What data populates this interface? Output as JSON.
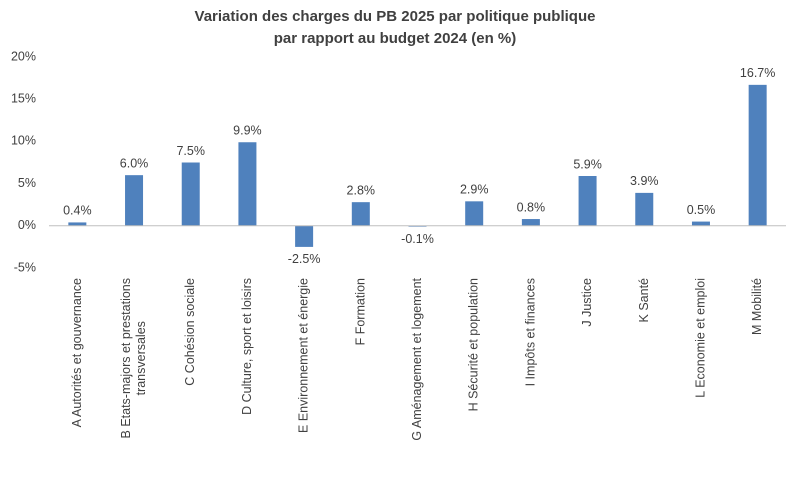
{
  "chart_data": {
    "type": "bar",
    "title": "Variation des charges du PB 2025 par politique publique\npar rapport au budget 2024 (en %)",
    "categories": [
      "A Autorités et gouvernance",
      "B Etats-majors et prestations\ntransversales",
      "C Cohésion sociale",
      "D Culture, sport et loisirs",
      "E Environnement et énergie",
      "F Formation",
      "G Aménagement et logement",
      "H Sécurité et population",
      "I Impôts et finances",
      "J Justice",
      "K Santé",
      "L Economie et emploi",
      "M Mobilité"
    ],
    "values": [
      0.4,
      6.0,
      7.5,
      9.9,
      -2.5,
      2.8,
      -0.1,
      2.9,
      0.8,
      5.9,
      3.9,
      0.5,
      16.7
    ],
    "value_labels": [
      "0.4%",
      "6.0%",
      "7.5%",
      "9.9%",
      "-2.5%",
      "2.8%",
      "-0.1%",
      "2.9%",
      "0.8%",
      "5.9%",
      "3.9%",
      "0.5%",
      "16.7%"
    ],
    "color": "#4f81bd",
    "ylim": [
      -5,
      20
    ],
    "yticks": [
      {
        "value": -5,
        "label": "-5%"
      },
      {
        "value": 0,
        "label": "0%"
      },
      {
        "value": 5,
        "label": "5%"
      },
      {
        "value": 10,
        "label": "10%"
      },
      {
        "value": 15,
        "label": "15%"
      },
      {
        "value": 20,
        "label": "20%"
      }
    ],
    "grid": false
  }
}
